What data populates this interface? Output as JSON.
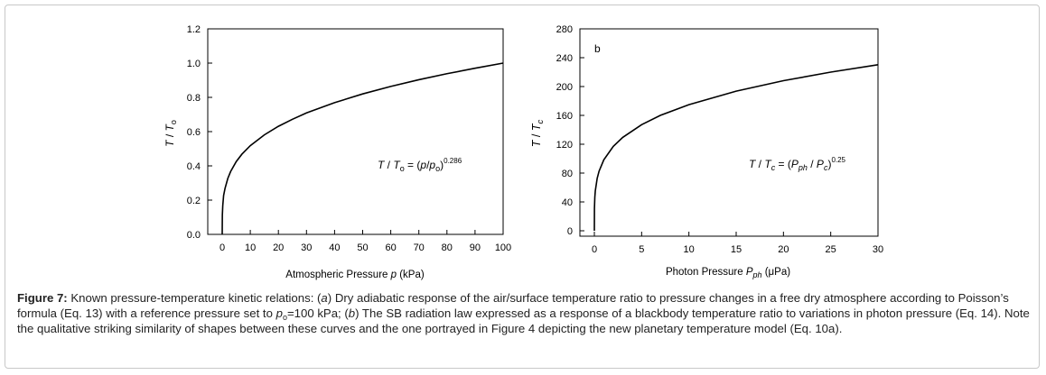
{
  "chart_data": [
    {
      "type": "line",
      "panel_label": "",
      "xlabel_prefix": "Atmospheric Pressure ",
      "xlabel_var": "p",
      "xlabel_suffix": " (kPa)",
      "ylabel_var": "T",
      "ylabel_sep": " / ",
      "ylabel_sub_var": "T",
      "ylabel_sub": "o",
      "xlim": [
        0,
        100
      ],
      "ylim": [
        0,
        1.2
      ],
      "xticks": [
        "0",
        "10",
        "20",
        "30",
        "40",
        "50",
        "60",
        "70",
        "80",
        "90",
        "100"
      ],
      "yticks": [
        "0.0",
        "0.2",
        "0.4",
        "0.6",
        "0.8",
        "1.0",
        "1.2"
      ],
      "grid": false,
      "series": [
        {
          "x": [
            0,
            0.05,
            0.2,
            0.5,
            1,
            2,
            3,
            5,
            7,
            10,
            15,
            20,
            25,
            30,
            40,
            50,
            60,
            70,
            80,
            90,
            100
          ],
          "y": [
            0.0,
            0.113,
            0.168,
            0.227,
            0.268,
            0.327,
            0.367,
            0.425,
            0.468,
            0.518,
            0.581,
            0.631,
            0.672,
            0.709,
            0.769,
            0.82,
            0.864,
            0.903,
            0.938,
            0.97,
            1.0
          ]
        }
      ],
      "annotation": {
        "lhs_var": "T",
        "lhs_sep": " / ",
        "lhs_sub_var": "T",
        "lhs_sub": "o",
        "eq": " = (",
        "p_var": "p",
        "slash": "/",
        "p0_var": "p",
        "p0_sub": "o",
        "close": ")",
        "exponent": "0.286"
      }
    },
    {
      "type": "line",
      "panel_label": "b",
      "xlabel_prefix": "Photon Pressure ",
      "xlabel_var": "P",
      "xlabel_sub": "ph",
      "xlabel_suffix": " (μPa)",
      "ylabel_var": "T",
      "ylabel_sep": " / ",
      "ylabel_sub_var": "T",
      "ylabel_sub": "c",
      "xlim": [
        0,
        30
      ],
      "ylim": [
        0,
        280
      ],
      "xticks": [
        "0",
        "5",
        "10",
        "15",
        "20",
        "25",
        "30"
      ],
      "yticks": [
        "0",
        "40",
        "80",
        "120",
        "160",
        "200",
        "240",
        "280"
      ],
      "grid": false,
      "series": [
        {
          "x": [
            0,
            0.01,
            0.05,
            0.1,
            0.3,
            0.5,
            1,
            2,
            3,
            5,
            7,
            10,
            15,
            20,
            25,
            30
          ],
          "y": [
            0,
            31,
            46.5,
            55.3,
            72.8,
            82.7,
            98.4,
            117,
            129.5,
            147.1,
            160.1,
            174.9,
            193.6,
            208.1,
            220.0,
            230.2
          ]
        }
      ],
      "annotation": {
        "lhs_var": "T",
        "lhs_sep": " / ",
        "lhs_sub_var": "T",
        "lhs_sub": "c",
        "eq": " = (",
        "p_var": "P",
        "p_sub": "ph",
        "slash": " / ",
        "p0_var": "P",
        "p0_sub": "c",
        "close": ")",
        "exponent": "0.25"
      }
    }
  ],
  "caption": {
    "lead": "Figure 7:",
    "t1": " Known pressure-temperature kinetic relations: (",
    "a": "a",
    "t2": ") Dry adiabatic response of the air/surface temperature ratio to pressure changes in a free dry atmosphere according to Poisson’s formula (Eq. 13) with a reference pressure set to ",
    "p": "p",
    "p_sub": "o",
    "t3": "=100 kPa; (",
    "b": "b",
    "t4": ") The SB radiation law expressed as a response of a blackbody temperature ratio to variations in photon pressure (Eq. 14). Note the qualitative striking similarity of shapes between these curves and the one portrayed in Figure 4 depicting the new planetary temperature model (Eq. 10a)."
  }
}
